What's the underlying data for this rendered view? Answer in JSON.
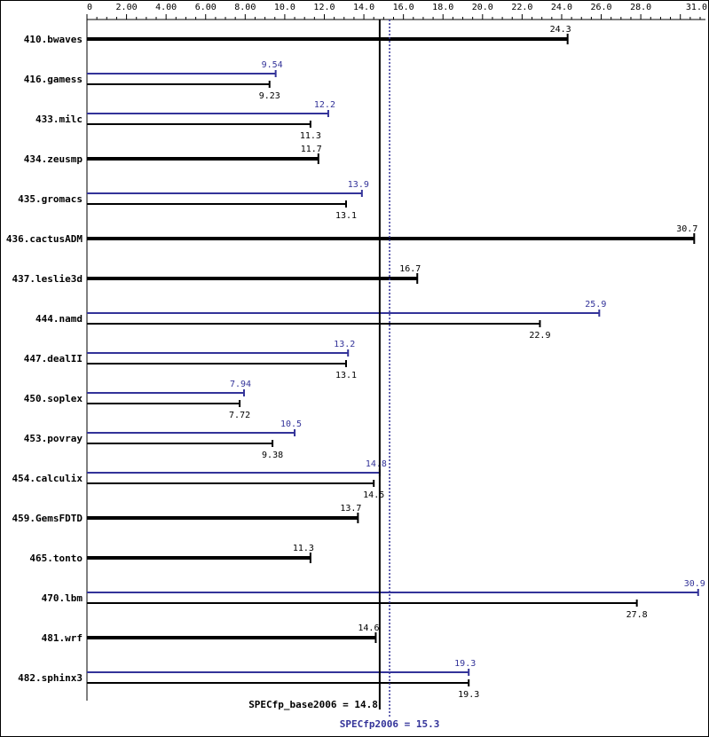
{
  "chart_data": {
    "type": "bar",
    "orientation": "horizontal",
    "x_ticks": [
      "0",
      "2.00",
      "4.00",
      "6.00",
      "8.00",
      "10.0",
      "12.0",
      "14.0",
      "16.0",
      "18.0",
      "20.0",
      "22.0",
      "24.0",
      "26.0",
      "28.0",
      "31.0"
    ],
    "xlim": [
      0,
      31
    ],
    "grid": false,
    "colors": {
      "base": "#000000",
      "peak": "#333399"
    },
    "benchmarks": [
      {
        "name": "410.bwaves",
        "base": 24.3,
        "base_label": "24.3",
        "peak": null,
        "peak_label": ""
      },
      {
        "name": "416.gamess",
        "base": 9.23,
        "base_label": "9.23",
        "peak": 9.54,
        "peak_label": "9.54"
      },
      {
        "name": "433.milc",
        "base": 11.3,
        "base_label": "11.3",
        "peak": 12.2,
        "peak_label": "12.2"
      },
      {
        "name": "434.zeusmp",
        "base": 11.7,
        "base_label": "11.7",
        "peak": null,
        "peak_label": ""
      },
      {
        "name": "435.gromacs",
        "base": 13.1,
        "base_label": "13.1",
        "peak": 13.9,
        "peak_label": "13.9"
      },
      {
        "name": "436.cactusADM",
        "base": 30.7,
        "base_label": "30.7",
        "peak": null,
        "peak_label": ""
      },
      {
        "name": "437.leslie3d",
        "base": 16.7,
        "base_label": "16.7",
        "peak": null,
        "peak_label": ""
      },
      {
        "name": "444.namd",
        "base": 22.9,
        "base_label": "22.9",
        "peak": 25.9,
        "peak_label": "25.9"
      },
      {
        "name": "447.dealII",
        "base": 13.1,
        "base_label": "13.1",
        "peak": 13.2,
        "peak_label": "13.2"
      },
      {
        "name": "450.soplex",
        "base": 7.72,
        "base_label": "7.72",
        "peak": 7.94,
        "peak_label": "7.94"
      },
      {
        "name": "453.povray",
        "base": 9.38,
        "base_label": "9.38",
        "peak": 10.5,
        "peak_label": "10.5"
      },
      {
        "name": "454.calculix",
        "base": 14.5,
        "base_label": "14.5",
        "peak": 14.8,
        "peak_label": "14.8"
      },
      {
        "name": "459.GemsFDTD",
        "base": 13.7,
        "base_label": "13.7",
        "peak": null,
        "peak_label": ""
      },
      {
        "name": "465.tonto",
        "base": 11.3,
        "base_label": "11.3",
        "peak": null,
        "peak_label": ""
      },
      {
        "name": "470.lbm",
        "base": 27.8,
        "base_label": "27.8",
        "peak": 30.9,
        "peak_label": "30.9"
      },
      {
        "name": "481.wrf",
        "base": 14.6,
        "base_label": "14.6",
        "peak": null,
        "peak_label": ""
      },
      {
        "name": "482.sphinx3",
        "base": 19.3,
        "base_label": "19.3",
        "peak": 19.3,
        "peak_label": "19.3"
      }
    ],
    "base_mean": 14.8,
    "base_mean_label": "SPECfp_base2006 = 14.8",
    "peak_mean": 15.3,
    "peak_mean_label": "SPECfp2006 = 15.3"
  }
}
